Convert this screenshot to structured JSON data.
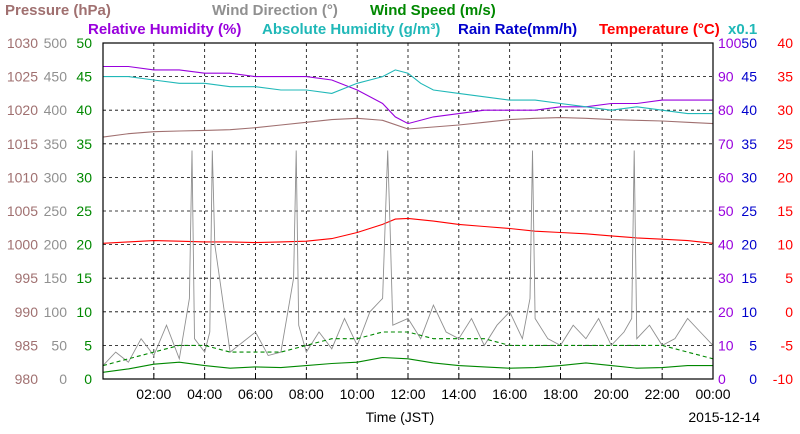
{
  "chart_data": {
    "type": "line",
    "date_label": "2015-12-14",
    "xlabel": "Time (JST)",
    "x_ticks": [
      "02:00",
      "04:00",
      "06:00",
      "08:00",
      "10:00",
      "12:00",
      "14:00",
      "16:00",
      "18:00",
      "20:00",
      "22:00",
      "00:00"
    ],
    "x_range_hours": [
      0,
      24
    ],
    "grid": true,
    "legend": {
      "row1": [
        {
          "id": "pressure",
          "text": "Pressure (hPa)",
          "color": "#a07070"
        },
        {
          "id": "wind_dir",
          "text": "Wind Direction (°)",
          "color": "#909090"
        },
        {
          "id": "wind_speed",
          "text": "Wind Speed (m/s)",
          "color": "#008800"
        }
      ],
      "row2": [
        {
          "id": "rh",
          "text": "Relative Humidity (%)",
          "color": "#9900dd"
        },
        {
          "id": "ah",
          "text": "Absolute Humidity (g/m³)",
          "color": "#20b8b8"
        },
        {
          "id": "rain",
          "text": "Rain Rate(mm/h)",
          "color": "#0000cc"
        },
        {
          "id": "temp",
          "text": "Temperature (°C)",
          "color": "#ff0000"
        }
      ],
      "ah_scale": "x0.1"
    },
    "axes": {
      "pressure": {
        "ticks": [
          "1030",
          "1025",
          "1020",
          "1015",
          "1010",
          "1005",
          "1000",
          "995",
          "990",
          "985",
          "980"
        ],
        "range": [
          980,
          1030
        ],
        "color": "#a07070"
      },
      "wind_dir": {
        "ticks": [
          "500",
          "450",
          "400",
          "350",
          "300",
          "250",
          "200",
          "150",
          "100",
          "50",
          "0"
        ],
        "range": [
          0,
          500
        ],
        "color": "#909090"
      },
      "wind_speed": {
        "ticks": [
          "50",
          "45",
          "40",
          "35",
          "30",
          "25",
          "20",
          "15",
          "10",
          "5",
          "0"
        ],
        "range": [
          0,
          50
        ],
        "color": "#008800"
      },
      "humidity": {
        "ticks": [
          "100",
          "90",
          "80",
          "70",
          "60",
          "50",
          "40",
          "30",
          "20",
          "10",
          "0"
        ],
        "range": [
          0,
          100
        ],
        "color": "#9900dd"
      },
      "rain": {
        "ticks": [
          "50",
          "45",
          "40",
          "35",
          "30",
          "25",
          "20",
          "15",
          "10",
          "5",
          "0"
        ],
        "range": [
          0,
          50
        ],
        "color": "#0000cc"
      },
      "temp": {
        "ticks": [
          "40",
          "35",
          "30",
          "25",
          "20",
          "15",
          "10",
          "5",
          "0",
          "-5",
          "-10"
        ],
        "range": [
          -10,
          40
        ],
        "color": "#ff0000"
      }
    },
    "series": [
      {
        "id": "pressure",
        "axis": "pressure",
        "color": "#a07070",
        "x": [
          0,
          1,
          2,
          3,
          4,
          5,
          6,
          7,
          8,
          9,
          10,
          11,
          12,
          13,
          14,
          15,
          16,
          17,
          18,
          19,
          20,
          21,
          22,
          23,
          24
        ],
        "values": [
          1016.0,
          1016.5,
          1016.8,
          1016.9,
          1017.0,
          1017.1,
          1017.4,
          1017.8,
          1018.2,
          1018.6,
          1018.8,
          1018.5,
          1017.2,
          1017.5,
          1017.8,
          1018.2,
          1018.6,
          1018.8,
          1018.9,
          1018.8,
          1018.6,
          1018.5,
          1018.4,
          1018.2,
          1018.0
        ]
      },
      {
        "id": "rh",
        "axis": "humidity",
        "color": "#9900dd",
        "x": [
          0,
          1,
          2,
          3,
          4,
          5,
          6,
          7,
          8,
          9,
          10,
          11,
          11.5,
          12,
          13,
          14,
          15,
          16,
          17,
          18,
          19,
          20,
          21,
          22,
          23,
          24
        ],
        "values": [
          93,
          93,
          92,
          92,
          91,
          91,
          90,
          90,
          90,
          89,
          86,
          82,
          78,
          76,
          78,
          79,
          80,
          80,
          80,
          81,
          81,
          82,
          82,
          83,
          83,
          83
        ]
      },
      {
        "id": "ah",
        "axis": "humidity",
        "color": "#20b8b8",
        "x": [
          0,
          1,
          2,
          3,
          4,
          5,
          6,
          7,
          8,
          9,
          10,
          10.5,
          11,
          11.5,
          12,
          12.5,
          13,
          14,
          15,
          16,
          17,
          18,
          19,
          20,
          21,
          22,
          23,
          24
        ],
        "values": [
          90,
          90,
          89,
          88,
          88,
          87,
          87,
          86,
          86,
          85,
          88,
          89,
          90,
          92,
          91,
          88,
          86,
          85,
          84,
          83,
          83,
          82,
          81,
          80,
          81,
          80,
          79,
          79
        ]
      },
      {
        "id": "temp",
        "axis": "temp",
        "color": "#ff0000",
        "x": [
          0,
          1,
          2,
          3,
          4,
          5,
          6,
          7,
          8,
          9,
          10,
          11,
          11.5,
          12,
          13,
          14,
          15,
          16,
          17,
          18,
          19,
          20,
          21,
          22,
          23,
          24
        ],
        "values": [
          10.2,
          10.4,
          10.6,
          10.5,
          10.4,
          10.4,
          10.3,
          10.4,
          10.5,
          10.9,
          11.8,
          13.0,
          13.8,
          13.9,
          13.5,
          13.0,
          12.7,
          12.4,
          12.0,
          11.8,
          11.6,
          11.3,
          11.0,
          10.8,
          10.6,
          10.2
        ]
      },
      {
        "id": "wind_dir",
        "axis": "wind_dir",
        "color": "#909090",
        "x": [
          0,
          0.5,
          1,
          1.5,
          2,
          2.5,
          3,
          3.4,
          3.5,
          3.6,
          4,
          4.2,
          4.3,
          4.4,
          5,
          6,
          6.5,
          7,
          7.5,
          7.6,
          7.7,
          8,
          8.5,
          9,
          9.5,
          10,
          10.5,
          11,
          11.2,
          11.3,
          11.4,
          12,
          12.5,
          13,
          13.5,
          14,
          14.5,
          15,
          15.5,
          16,
          16.5,
          16.8,
          16.9,
          17,
          17.5,
          18,
          18.5,
          19,
          19.5,
          20,
          20.5,
          20.8,
          20.9,
          21,
          21.5,
          22,
          22.5,
          23,
          23.5,
          24
        ],
        "values": [
          20,
          40,
          25,
          60,
          35,
          80,
          30,
          120,
          340,
          60,
          40,
          70,
          340,
          200,
          40,
          70,
          35,
          40,
          150,
          340,
          80,
          40,
          70,
          45,
          90,
          50,
          100,
          120,
          340,
          220,
          80,
          90,
          60,
          110,
          70,
          60,
          90,
          50,
          80,
          100,
          60,
          120,
          340,
          90,
          60,
          50,
          80,
          60,
          90,
          50,
          70,
          90,
          340,
          60,
          80,
          50,
          60,
          90,
          70,
          50
        ]
      },
      {
        "id": "wind_speed",
        "axis": "wind_speed",
        "color": "#008800",
        "x": [
          0,
          1,
          2,
          3,
          4,
          5,
          6,
          7,
          8,
          9,
          10,
          11,
          12,
          13,
          14,
          15,
          16,
          17,
          18,
          19,
          20,
          21,
          22,
          23,
          24
        ],
        "values": [
          1.0,
          1.5,
          2.2,
          2.5,
          2.0,
          1.6,
          1.8,
          1.7,
          2.0,
          2.3,
          2.5,
          3.2,
          3.0,
          2.4,
          2.0,
          1.8,
          1.6,
          1.7,
          2.0,
          2.4,
          2.0,
          1.6,
          1.7,
          2.0,
          2.0
        ]
      },
      {
        "id": "wind_gust",
        "axis": "wind_speed",
        "color": "#008800",
        "dashed": true,
        "x": [
          0,
          1,
          2,
          3,
          4,
          5,
          6,
          7,
          8,
          9,
          10,
          11,
          12,
          13,
          14,
          15,
          16,
          17,
          18,
          19,
          20,
          21,
          22,
          23,
          24
        ],
        "values": [
          2,
          3,
          4,
          5,
          5,
          4,
          4,
          4,
          5,
          6,
          6,
          7,
          7,
          6,
          6,
          6,
          5,
          5,
          5,
          5,
          5,
          5,
          5,
          4,
          3
        ]
      },
      {
        "id": "rain",
        "axis": "rain",
        "color": "#0000cc",
        "x": [
          0,
          24
        ],
        "values": [
          0,
          0
        ]
      }
    ]
  }
}
